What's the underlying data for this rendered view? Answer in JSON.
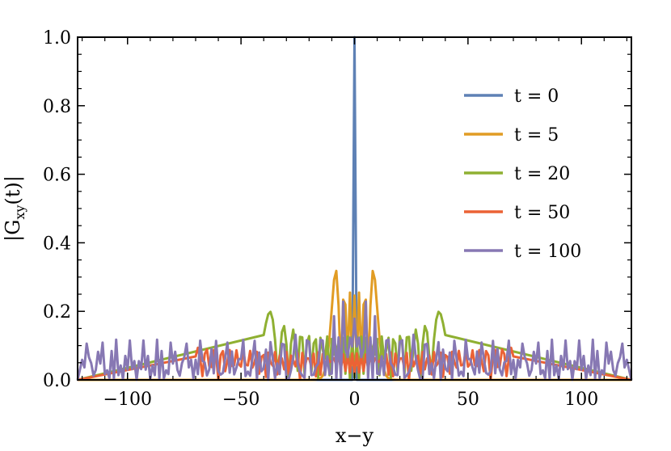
{
  "chart_data": {
    "type": "line",
    "title": "",
    "xlabel": "x−y",
    "ylabel": "|G_xy(t)|",
    "ylabel_main": "|G",
    "ylabel_sub": "xy",
    "ylabel_tail": "(t)|",
    "xlim": [
      -122,
      122
    ],
    "ylim": [
      0,
      1
    ],
    "x_ticks": [
      -100,
      -50,
      0,
      50,
      100
    ],
    "x_tick_labels": [
      "−100",
      "−50",
      "0",
      "50",
      "100"
    ],
    "y_ticks": [
      0,
      0.2,
      0.4,
      0.6,
      0.8,
      1
    ],
    "y_tick_labels": [
      "0.0",
      "0.2",
      "0.4",
      "0.6",
      "0.8",
      "1.0"
    ],
    "grid": false,
    "legend_position": "right",
    "series": [
      {
        "name": "t = 0",
        "t": 0,
        "color": "#5e81b5"
      },
      {
        "name": "t = 5",
        "t": 5,
        "color": "#e19c24"
      },
      {
        "name": "t = 20",
        "t": 20,
        "color": "#8fb032"
      },
      {
        "name": "t = 50",
        "t": 50,
        "color": "#eb6235"
      },
      {
        "name": "t = 100",
        "t": 100,
        "color": "#8778b3"
      }
    ]
  }
}
